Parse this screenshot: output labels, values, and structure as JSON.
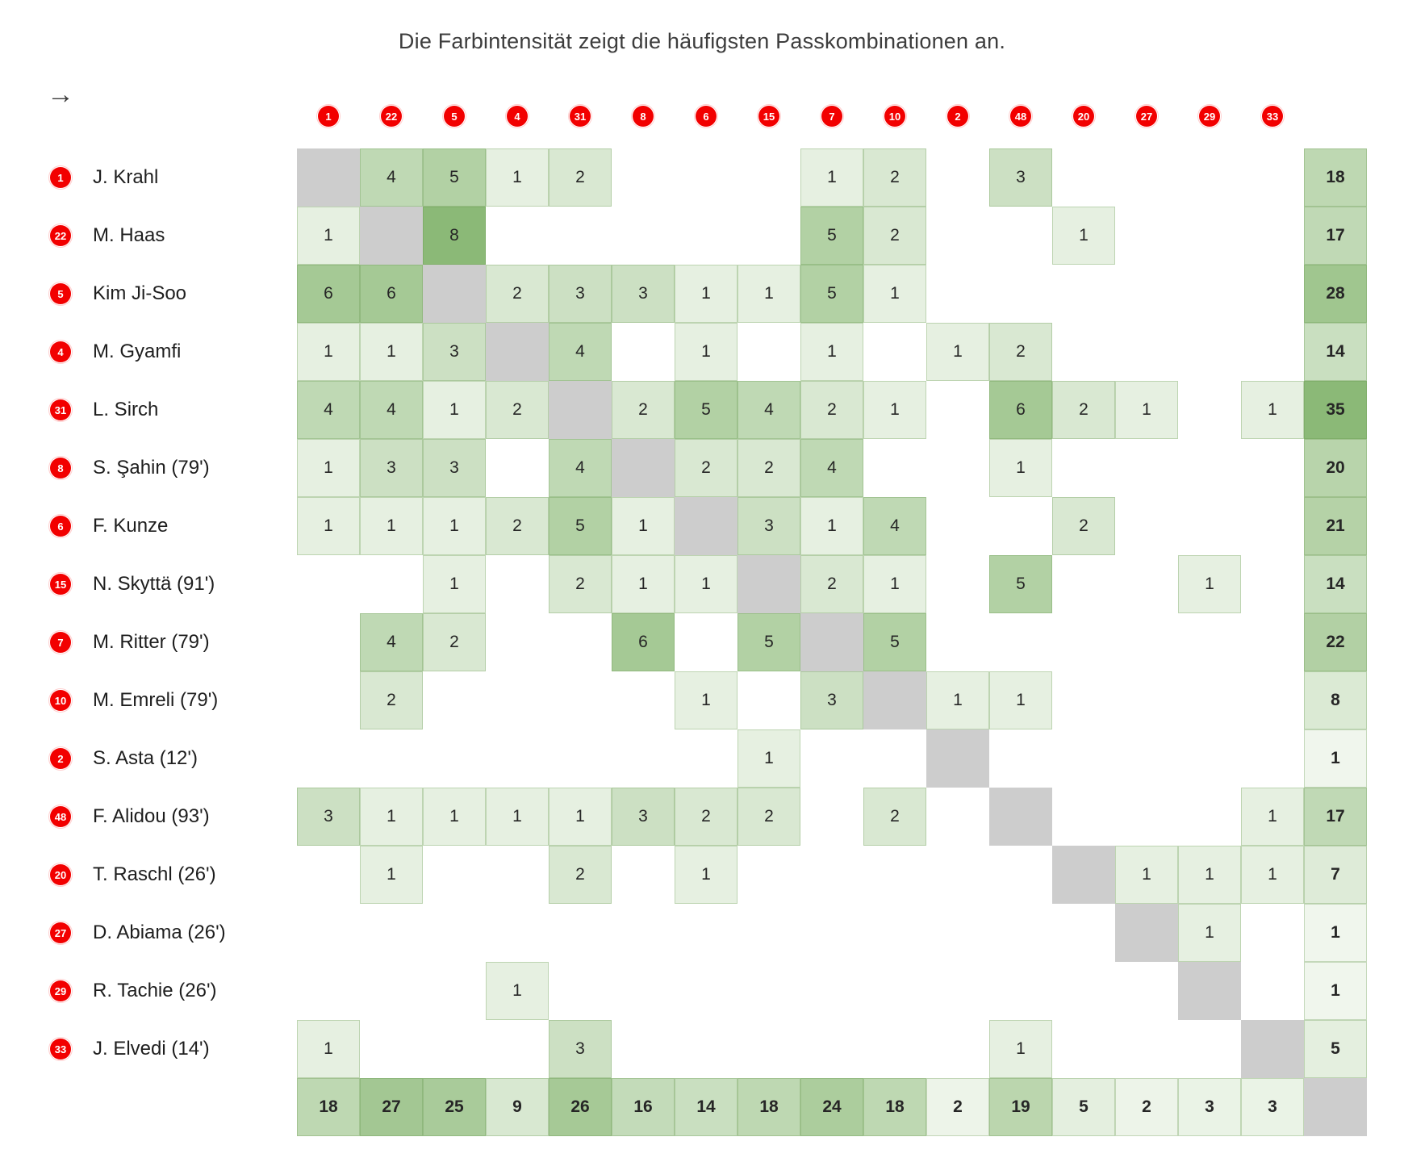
{
  "ui": {
    "direction_arrow": "→"
  },
  "colors": {
    "badge_red": "#f20000",
    "badge_ring": "#ffcfcf",
    "diagonal_gray": "#cdcdcd",
    "scale_min": "#f3f8f0",
    "scale_max": "#8bb977",
    "cell_border": "rgba(104,152,78,0.32)",
    "cell_text": "#262626",
    "title_color": "#3d3d3d"
  },
  "chart_data": {
    "type": "heatmap",
    "title": "Die Farbintensität zeigt die häufigsten Passkombinationen an.",
    "x_axis_player_numbers": [
      "1",
      "22",
      "5",
      "4",
      "31",
      "8",
      "6",
      "15",
      "7",
      "10",
      "2",
      "48",
      "20",
      "27",
      "29",
      "33"
    ],
    "rows": [
      {
        "number": "1",
        "name": "J. Krahl",
        "values": [
          null,
          4,
          5,
          1,
          2,
          null,
          null,
          null,
          1,
          2,
          null,
          3,
          null,
          null,
          null,
          null
        ],
        "total": 18
      },
      {
        "number": "22",
        "name": "M. Haas",
        "values": [
          1,
          null,
          8,
          null,
          null,
          null,
          null,
          null,
          5,
          2,
          null,
          null,
          1,
          null,
          null,
          null
        ],
        "total": 17
      },
      {
        "number": "5",
        "name": "Kim Ji-Soo",
        "values": [
          6,
          6,
          null,
          2,
          3,
          3,
          1,
          1,
          5,
          1,
          null,
          null,
          null,
          null,
          null,
          null
        ],
        "total": 28
      },
      {
        "number": "4",
        "name": "M. Gyamfi",
        "values": [
          1,
          1,
          3,
          null,
          4,
          null,
          1,
          null,
          1,
          null,
          1,
          2,
          null,
          null,
          null,
          null
        ],
        "total": 14
      },
      {
        "number": "31",
        "name": "L. Sirch",
        "values": [
          4,
          4,
          1,
          2,
          null,
          2,
          5,
          4,
          2,
          1,
          null,
          6,
          2,
          1,
          null,
          1
        ],
        "total": 35
      },
      {
        "number": "8",
        "name": "S. Şahin (79')",
        "values": [
          1,
          3,
          3,
          null,
          4,
          null,
          2,
          2,
          4,
          null,
          null,
          1,
          null,
          null,
          null,
          null
        ],
        "total": 20
      },
      {
        "number": "6",
        "name": "F. Kunze",
        "values": [
          1,
          1,
          1,
          2,
          5,
          1,
          null,
          3,
          1,
          4,
          null,
          null,
          2,
          null,
          null,
          null
        ],
        "total": 21
      },
      {
        "number": "15",
        "name": "N. Skyttä (91')",
        "values": [
          null,
          null,
          1,
          null,
          2,
          1,
          1,
          null,
          2,
          1,
          null,
          5,
          null,
          null,
          1,
          null
        ],
        "total": 14
      },
      {
        "number": "7",
        "name": "M. Ritter (79')",
        "values": [
          null,
          4,
          2,
          null,
          null,
          6,
          null,
          5,
          null,
          5,
          null,
          null,
          null,
          null,
          null,
          null
        ],
        "total": 22
      },
      {
        "number": "10",
        "name": "M. Emreli (79')",
        "values": [
          null,
          2,
          null,
          null,
          null,
          null,
          1,
          null,
          3,
          null,
          1,
          1,
          null,
          null,
          null,
          null
        ],
        "total": 8
      },
      {
        "number": "2",
        "name": "S. Asta (12')",
        "values": [
          null,
          null,
          null,
          null,
          null,
          null,
          null,
          1,
          null,
          null,
          null,
          null,
          null,
          null,
          null,
          null
        ],
        "total": 1
      },
      {
        "number": "48",
        "name": "F. Alidou (93')",
        "values": [
          3,
          1,
          1,
          1,
          1,
          3,
          2,
          2,
          null,
          2,
          null,
          null,
          null,
          null,
          null,
          1
        ],
        "total": 17
      },
      {
        "number": "20",
        "name": "T. Raschl (26')",
        "values": [
          null,
          1,
          null,
          null,
          2,
          null,
          1,
          null,
          null,
          null,
          null,
          null,
          null,
          1,
          1,
          1
        ],
        "total": 7
      },
      {
        "number": "27",
        "name": "D. Abiama (26')",
        "values": [
          null,
          null,
          null,
          null,
          null,
          null,
          null,
          null,
          null,
          null,
          null,
          null,
          null,
          null,
          1,
          null
        ],
        "total": 1
      },
      {
        "number": "29",
        "name": "R. Tachie (26')",
        "values": [
          null,
          null,
          null,
          1,
          null,
          null,
          null,
          null,
          null,
          null,
          null,
          null,
          null,
          null,
          null,
          null
        ],
        "total": 1
      },
      {
        "number": "33",
        "name": "J. Elvedi (14')",
        "values": [
          1,
          null,
          null,
          null,
          3,
          null,
          null,
          null,
          null,
          null,
          null,
          1,
          null,
          null,
          null,
          null
        ],
        "total": 5
      }
    ],
    "column_totals": [
      18,
      27,
      25,
      9,
      26,
      16,
      14,
      18,
      24,
      18,
      2,
      19,
      5,
      2,
      3,
      3
    ],
    "color_scale": {
      "cell_value_max": 8,
      "total_value_max": 35
    },
    "layout": {
      "diagonal": "self-pass cells shown gray",
      "legend": "none",
      "grid": "off"
    }
  }
}
